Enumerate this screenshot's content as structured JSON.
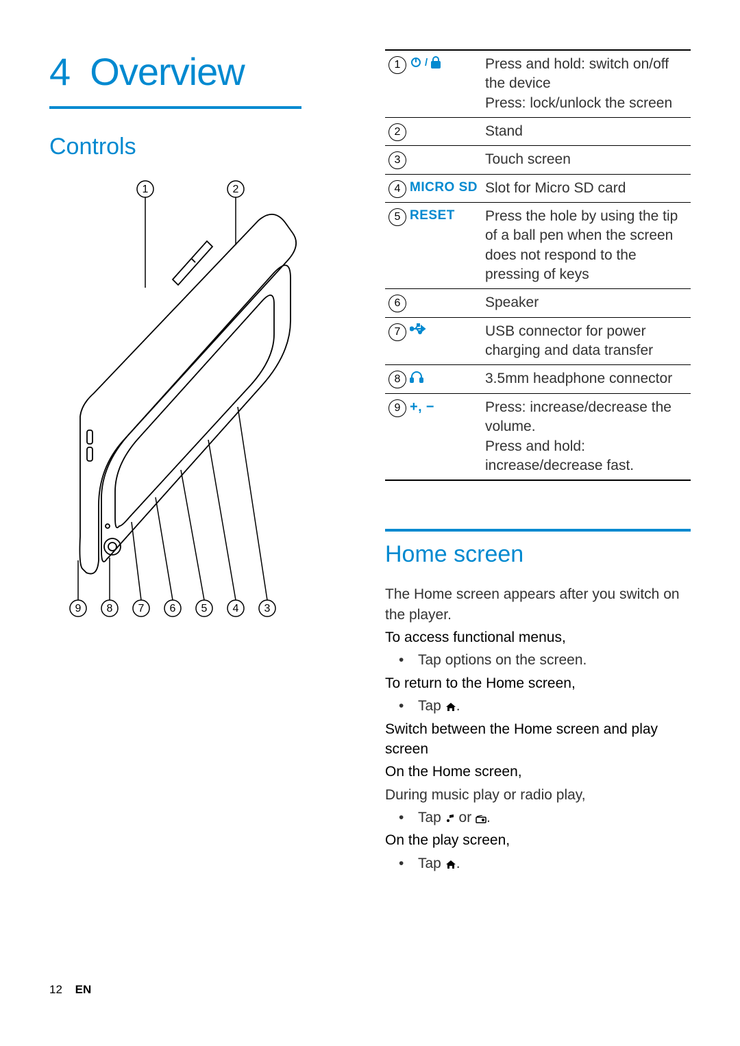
{
  "accent_color": "#0089d0",
  "chapter_number": "4",
  "chapter_title": "Overview",
  "section_controls": "Controls",
  "section_home": "Home screen",
  "controls": [
    {
      "num": "1",
      "icon": "power-lock",
      "desc": "Press and hold: switch on/off the device\nPress: lock/unlock the screen"
    },
    {
      "num": "2",
      "icon": "",
      "desc": "Stand"
    },
    {
      "num": "3",
      "icon": "",
      "desc": "Touch screen"
    },
    {
      "num": "4",
      "icon_text": "MICRO SD",
      "desc": "Slot for Micro SD card"
    },
    {
      "num": "5",
      "icon_text": "RESET",
      "desc": "Press the hole by using the tip of a ball pen when the screen does not respond to the pressing of keys"
    },
    {
      "num": "6",
      "icon": "",
      "desc": "Speaker"
    },
    {
      "num": "7",
      "icon": "usb",
      "desc": "USB connector for power charging and data transfer"
    },
    {
      "num": "8",
      "icon": "headphone",
      "desc": "3.5mm headphone connector"
    },
    {
      "num": "9",
      "icon": "plus-minus",
      "desc": "Press: increase/decrease the volume.\nPress and hold: increase/decrease fast."
    }
  ],
  "home_intro": "The Home screen appears after you switch on the player.",
  "home_access_title": "To access functional menus,",
  "home_access_item": "Tap options on the screen.",
  "home_return_title": "To return to the Home screen,",
  "home_return_item_prefix": "Tap ",
  "home_switch_title": "Switch between the Home screen and play screen",
  "home_on_home": "On the Home screen,",
  "home_during": "During music play or radio play,",
  "home_tap_music_prefix": "Tap ",
  "home_tap_music_middle": " or ",
  "home_on_play": "On the play screen,",
  "diagram_callouts_top": [
    "1",
    "2"
  ],
  "diagram_callouts_bottom": [
    "9",
    "8",
    "7",
    "6",
    "5",
    "4",
    "3"
  ],
  "footer_page": "12",
  "footer_lang": "EN"
}
